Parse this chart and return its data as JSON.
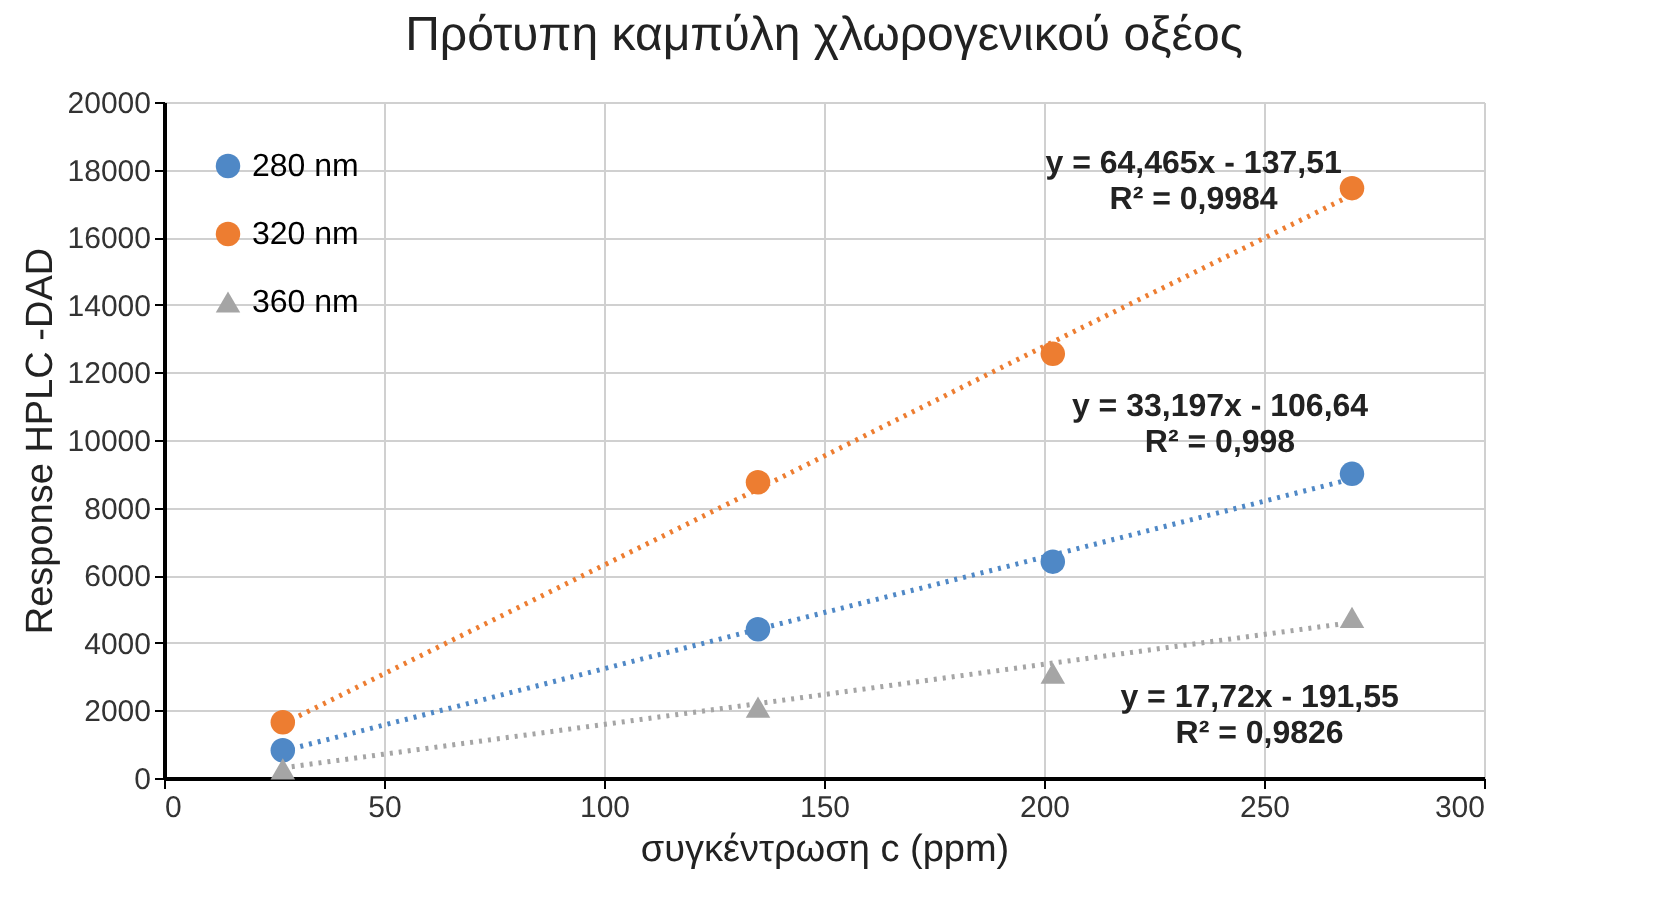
{
  "chart_data": {
    "type": "scatter",
    "title": "Πρότυπη καμπύλη χλωρογενικού οξέος",
    "xlabel": "συγκέντρωση c (ppm)",
    "ylabel": "Response HPLC -DAD",
    "x": [
      27,
      135,
      202,
      270
    ],
    "series": [
      {
        "name": "280 nm",
        "color": "#4f88c6",
        "marker": "circle",
        "values": [
          820,
          4400,
          6400,
          9000
        ]
      },
      {
        "name": "320 nm",
        "color": "#ed7d31",
        "marker": "circle",
        "values": [
          1650,
          8750,
          12550,
          17450
        ]
      },
      {
        "name": "360 nm",
        "color": "#a5a5a5",
        "marker": "triangle",
        "values": [
          270,
          2100,
          3100,
          4750
        ]
      },
      {
        "type": "line",
        "color": "#4f88c6",
        "line_style": "dotted",
        "values": [
          800,
          4400,
          6600,
          8850
        ]
      },
      {
        "type": "line",
        "color": "#ed7d31",
        "line_style": "dotted",
        "values": [
          1600,
          8550,
          12900,
          17250
        ]
      },
      {
        "type": "line",
        "color": "#a5a5a5",
        "line_style": "dotted",
        "values": [
          300,
          2200,
          3400,
          4600
        ]
      }
    ],
    "annotations": [
      "y = 64,465x - 137,51\nR² = 0,9984",
      "y = 33,197x - 106,64\nR² = 0,998",
      "y = 17,72x - 191,55\nR² = 0,9826"
    ],
    "xlim": [
      0,
      300
    ],
    "xticks": [
      0,
      50,
      100,
      150,
      200,
      250,
      300
    ],
    "ylim": [
      0,
      20000
    ],
    "yticks": [
      0,
      2000,
      4000,
      6000,
      8000,
      10000,
      12000,
      14000,
      16000,
      18000,
      20000
    ],
    "grid": true,
    "legend": "top left"
  }
}
